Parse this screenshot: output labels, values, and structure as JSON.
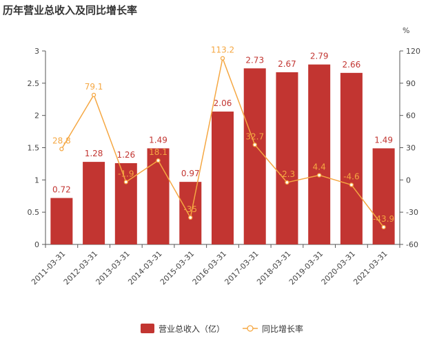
{
  "title": "历年营业总收入及同比增长率",
  "chart_data": {
    "type": "bar",
    "title": "历年营业总收入及同比增长率",
    "categories": [
      "2011-03-31",
      "2012-03-31",
      "2013-03-31",
      "2014-03-31",
      "2015-03-31",
      "2016-03-31",
      "2017-03-31",
      "2018-03-31",
      "2019-03-31",
      "2020-03-31",
      "2021-03-31"
    ],
    "series": [
      {
        "name": "营业总收入（亿）",
        "type": "bar",
        "axis": "left",
        "color": "#c23531",
        "values": [
          0.72,
          1.28,
          1.26,
          1.49,
          0.97,
          2.06,
          2.73,
          2.67,
          2.79,
          2.66,
          1.49
        ],
        "labels": [
          "0.72",
          "1.28",
          "1.26",
          "1.49",
          "0.97",
          "2.06",
          "2.73",
          "2.67",
          "2.79",
          "2.66",
          "1.49"
        ]
      },
      {
        "name": "同比增长率",
        "type": "line",
        "axis": "right",
        "color": "#f5a742",
        "values": [
          28.8,
          79.1,
          -1.9,
          18.1,
          -35,
          113.2,
          32.7,
          -2.3,
          4.4,
          -4.6,
          -43.9
        ],
        "labels": [
          "28.8",
          "79.1",
          "-1.9",
          "18.1",
          "-35",
          "113.2",
          "32.7",
          "-2.3",
          "4.4",
          "-4.6",
          "-43.9"
        ]
      }
    ],
    "y_left": {
      "min": 0,
      "max": 3,
      "ticks": [
        "0",
        "0.5",
        "1",
        "1.5",
        "2",
        "2.5",
        "3"
      ]
    },
    "y_right": {
      "min": -60,
      "max": 120,
      "unit": "%",
      "ticks": [
        "-60",
        "-30",
        "0",
        "30",
        "60",
        "90",
        "120"
      ]
    },
    "grid": false,
    "legend_position": "bottom"
  }
}
